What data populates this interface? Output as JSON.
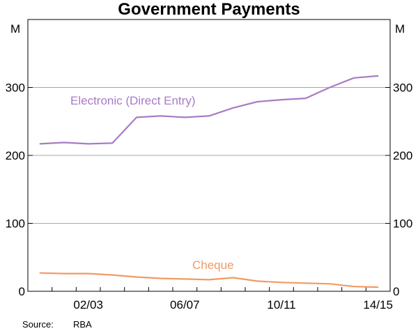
{
  "chart_data": {
    "type": "line",
    "title": "Government Payments",
    "unit_left": "M",
    "unit_right": "M",
    "ylim": [
      0,
      400
    ],
    "yticks": [
      0,
      100,
      200,
      300
    ],
    "grid": true,
    "x": [
      "00/01",
      "01/02",
      "02/03",
      "03/04",
      "04/05",
      "05/06",
      "06/07",
      "07/08",
      "08/09",
      "09/10",
      "10/11",
      "11/12",
      "12/13",
      "13/14",
      "14/15"
    ],
    "xtick_labels": [
      "02/03",
      "06/07",
      "10/11",
      "14/15"
    ],
    "series": [
      {
        "name": "Electronic (Direct Entry)",
        "color": "#a77cc4",
        "values": [
          217,
          219,
          217,
          218,
          256,
          258,
          256,
          258,
          270,
          279,
          282,
          284,
          300,
          314,
          317
        ]
      },
      {
        "name": "Cheque",
        "color": "#f29a63",
        "values": [
          27,
          26,
          26,
          24,
          21,
          19,
          18,
          17,
          20,
          15,
          13,
          12,
          11,
          7,
          6
        ]
      }
    ],
    "source_label": "Source:",
    "source_value": "RBA"
  }
}
